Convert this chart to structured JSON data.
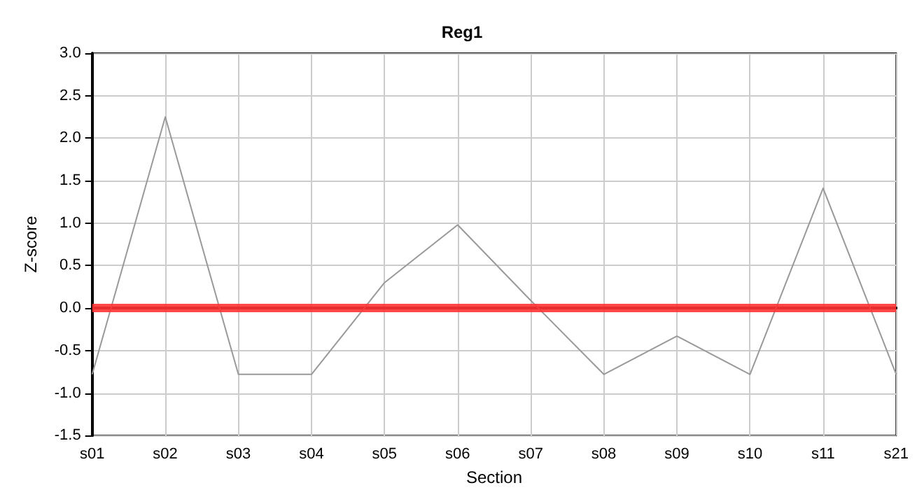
{
  "chart_data": {
    "type": "line",
    "title": "Reg1",
    "xlabel": "Section",
    "ylabel": "Z-score",
    "categories": [
      "s01",
      "s02",
      "s03",
      "s04",
      "s05",
      "s06",
      "s07",
      "s08",
      "s09",
      "s10",
      "s11",
      "s21"
    ],
    "series": [
      {
        "color": "#999999",
        "values": [
          -0.78,
          2.25,
          -0.78,
          -0.78,
          0.3,
          0.98,
          0.09,
          -0.78,
          -0.33,
          -0.78,
          1.41,
          -0.78
        ]
      }
    ],
    "ylim": [
      -1.5,
      3.0
    ],
    "yticks": [
      {
        "value": -1.5,
        "label": "-1.5"
      },
      {
        "value": -1,
        "label": "-1.0"
      },
      {
        "value": -0.5,
        "label": "-0.5"
      },
      {
        "value": 0,
        "label": "0.0"
      },
      {
        "value": 0.5,
        "label": "0.5"
      },
      {
        "value": 1,
        "label": "1.0"
      },
      {
        "value": 1.5,
        "label": "1.5"
      },
      {
        "value": 2,
        "label": "2.0"
      },
      {
        "value": 2.5,
        "label": "2.5"
      },
      {
        "value": 3,
        "label": "3.0"
      }
    ],
    "ref_lines": [
      {
        "axis": "y",
        "value": 0,
        "color": "#ff3333"
      }
    ],
    "grid": true,
    "marker": "none",
    "line_style": "solid"
  }
}
